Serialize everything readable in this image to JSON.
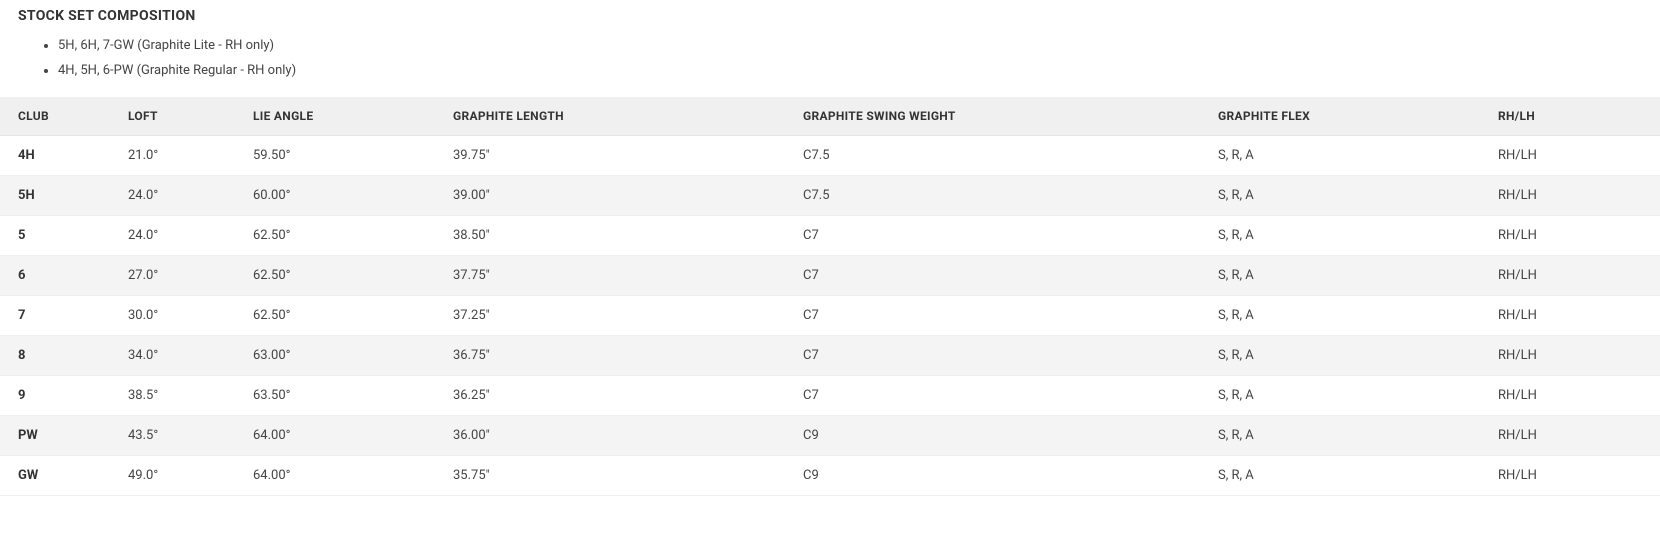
{
  "heading": "STOCK SET COMPOSITION",
  "bullets": [
    "5H, 6H, 7-GW (Graphite Lite - RH only)",
    "4H, 5H, 6-PW (Graphite Regular - RH only)"
  ],
  "table": {
    "columns": [
      "CLUB",
      "LOFT",
      "LIE ANGLE",
      "GRAPHITE LENGTH",
      "GRAPHITE SWING WEIGHT",
      "GRAPHITE FLEX",
      "RH/LH"
    ],
    "rows": [
      {
        "club": "4H",
        "loft": "21.0°",
        "lie": "59.50°",
        "length": "39.75\"",
        "swing": "C7.5",
        "flex": "S, R, A",
        "rhlh": "RH/LH"
      },
      {
        "club": "5H",
        "loft": "24.0°",
        "lie": "60.00°",
        "length": "39.00\"",
        "swing": "C7.5",
        "flex": "S, R, A",
        "rhlh": "RH/LH"
      },
      {
        "club": "5",
        "loft": "24.0°",
        "lie": "62.50°",
        "length": "38.50\"",
        "swing": "C7",
        "flex": "S, R, A",
        "rhlh": "RH/LH"
      },
      {
        "club": "6",
        "loft": "27.0°",
        "lie": "62.50°",
        "length": "37.75\"",
        "swing": "C7",
        "flex": "S, R, A",
        "rhlh": "RH/LH"
      },
      {
        "club": "7",
        "loft": "30.0°",
        "lie": "62.50°",
        "length": "37.25\"",
        "swing": "C7",
        "flex": "S, R, A",
        "rhlh": "RH/LH"
      },
      {
        "club": "8",
        "loft": "34.0°",
        "lie": "63.00°",
        "length": "36.75\"",
        "swing": "C7",
        "flex": "S, R, A",
        "rhlh": "RH/LH"
      },
      {
        "club": "9",
        "loft": "38.5°",
        "lie": "63.50°",
        "length": "36.25\"",
        "swing": "C7",
        "flex": "S, R, A",
        "rhlh": "RH/LH"
      },
      {
        "club": "PW",
        "loft": "43.5°",
        "lie": "64.00°",
        "length": "36.00\"",
        "swing": "C9",
        "flex": "S, R, A",
        "rhlh": "RH/LH"
      },
      {
        "club": "GW",
        "loft": "49.0°",
        "lie": "64.00°",
        "length": "35.75\"",
        "swing": "C9",
        "flex": "S, R, A",
        "rhlh": "RH/LH"
      }
    ]
  },
  "colors": {
    "text": "#333333",
    "muted": "#444444",
    "header_bg": "#f0f0f0",
    "row_even_bg": "#f4f4f4",
    "row_odd_bg": "#ffffff",
    "border": "#eeeeee"
  }
}
